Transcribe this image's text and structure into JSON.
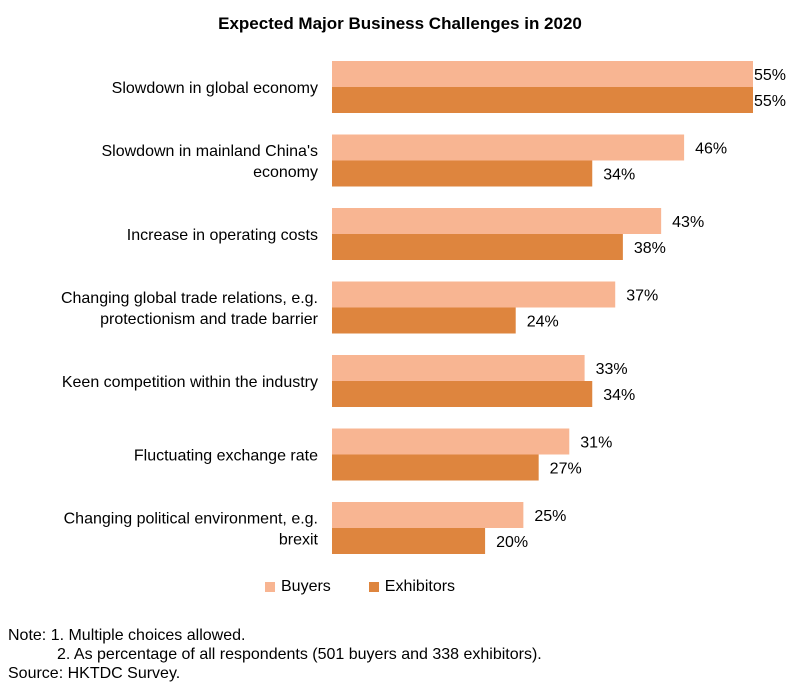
{
  "chart_data": {
    "type": "bar",
    "orientation": "horizontal",
    "title": "Expected Major Business Challenges in 2020",
    "categories": [
      [
        "Slowdown in global economy"
      ],
      [
        "Slowdown in mainland China's",
        "economy"
      ],
      [
        "Increase in operating costs"
      ],
      [
        "Changing global trade relations, e.g.",
        "protectionism and trade barrier"
      ],
      [
        "Keen competition within the industry"
      ],
      [
        "Fluctuating exchange rate"
      ],
      [
        "Changing political environment, e.g.",
        "brexit"
      ]
    ],
    "series": [
      {
        "name": "Buyers",
        "values": [
          55,
          46,
          43,
          37,
          33,
          31,
          25
        ],
        "color": "#F8B592"
      },
      {
        "name": "Exhibitors",
        "values": [
          55,
          34,
          38,
          24,
          34,
          27,
          20
        ],
        "color": "#DE853E"
      }
    ],
    "value_suffix": "%",
    "xlim": [
      0,
      55
    ],
    "grid": false,
    "legend_position": "bottom"
  },
  "notes": {
    "line1": "Note: 1. Multiple choices allowed.",
    "line2": "2. As percentage of all respondents (501 buyers and 338 exhibitors).",
    "source": "Source: HKTDC Survey."
  }
}
